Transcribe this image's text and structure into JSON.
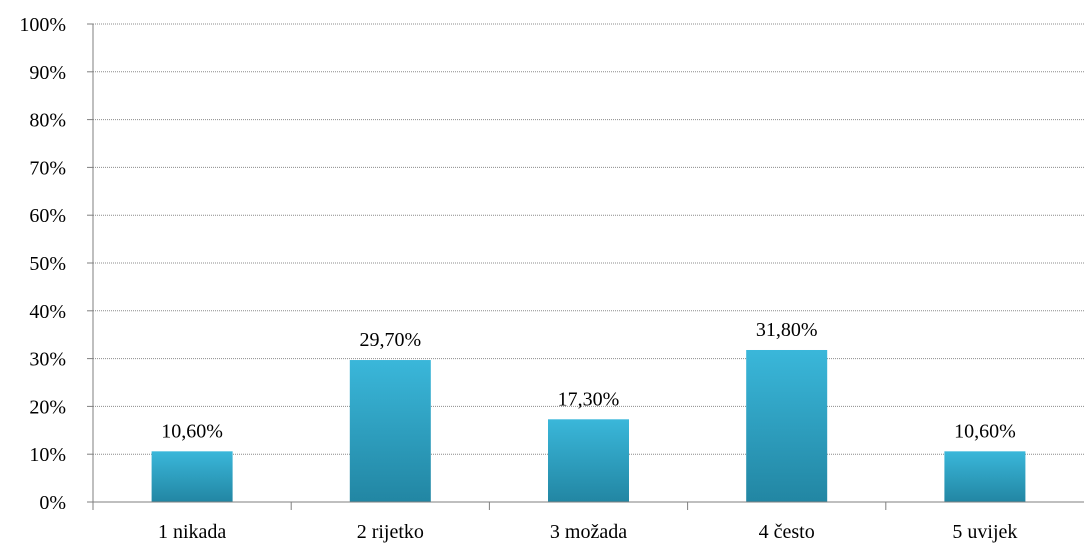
{
  "chart_data": {
    "type": "bar",
    "categories": [
      "1 nikada",
      "2 rijetko",
      "3 možada",
      "4 često",
      "5 uvijek"
    ],
    "values": [
      10.6,
      29.7,
      17.3,
      31.8,
      10.6
    ],
    "data_labels": [
      "10,60%",
      "29,70%",
      "17,30%",
      "31,80%",
      "10,60%"
    ],
    "title": "",
    "xlabel": "",
    "ylabel": "",
    "ylim": [
      0,
      100
    ],
    "y_ticks": [
      0,
      10,
      20,
      30,
      40,
      50,
      60,
      70,
      80,
      90,
      100
    ],
    "y_tick_labels": [
      "0%",
      "10%",
      "20%",
      "30%",
      "40%",
      "50%",
      "60%",
      "70%",
      "80%",
      "90%",
      "100%"
    ],
    "grid": true,
    "legend": "none",
    "bar_color_top": "#3ab7da",
    "bar_color_bottom": "#2286a3"
  }
}
